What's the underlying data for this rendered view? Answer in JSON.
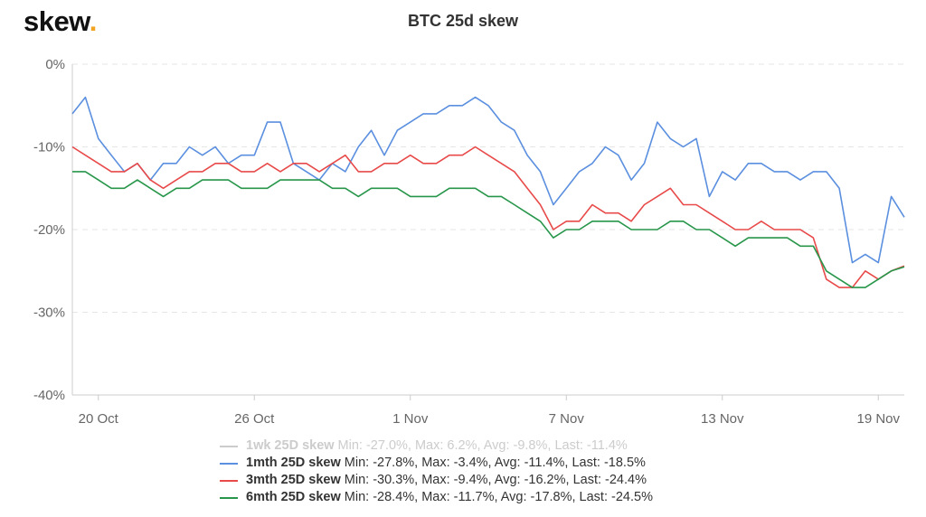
{
  "brand": {
    "name": "skew",
    "dot": "."
  },
  "chart_data": {
    "type": "line",
    "title": "BTC 25d skew",
    "xlabel": "",
    "ylabel": "",
    "ylim": [
      -40,
      0
    ],
    "y_ticks": [
      "0%",
      "-10%",
      "-20%",
      "-30%",
      "-40%"
    ],
    "y_tick_values": [
      0,
      -10,
      -20,
      -30,
      -40
    ],
    "x_range": [
      "2020-10-19",
      "2020-11-20"
    ],
    "x_ticks": [
      "20 Oct",
      "26 Oct",
      "1 Nov",
      "7 Nov",
      "13 Nov",
      "19 Nov"
    ],
    "x_tick_dates": [
      "2020-10-20",
      "2020-10-26",
      "2020-11-01",
      "2020-11-07",
      "2020-11-13",
      "2020-11-19"
    ],
    "grid": "horizontal-dashed",
    "legend_position": "bottom",
    "series": [
      {
        "name": "1wk 25D skew",
        "stats": "Min: -27.0%, Max: 6.2%, Avg: -9.8%, Last: -11.4%",
        "color": "#cccccc",
        "visible": false,
        "x": [],
        "values": []
      },
      {
        "name": "1mth 25D skew",
        "stats": "Min: -27.8%, Max: -3.4%, Avg: -11.4%, Last: -18.5%",
        "color": "#5b8fdf",
        "visible": true,
        "x": [
          "2020-10-19",
          "2020-10-19T12:00",
          "2020-10-20",
          "2020-10-20T12:00",
          "2020-10-21",
          "2020-10-21T12:00",
          "2020-10-22",
          "2020-10-22T12:00",
          "2020-10-23",
          "2020-10-23T12:00",
          "2020-10-24",
          "2020-10-24T12:00",
          "2020-10-25",
          "2020-10-25T12:00",
          "2020-10-26",
          "2020-10-26T12:00",
          "2020-10-27",
          "2020-10-27T12:00",
          "2020-10-28",
          "2020-10-28T12:00",
          "2020-10-29",
          "2020-10-29T12:00",
          "2020-10-30",
          "2020-10-30T12:00",
          "2020-10-31",
          "2020-10-31T12:00",
          "2020-11-01",
          "2020-11-01T12:00",
          "2020-11-02",
          "2020-11-02T12:00",
          "2020-11-03",
          "2020-11-03T12:00",
          "2020-11-04",
          "2020-11-04T12:00",
          "2020-11-05",
          "2020-11-05T12:00",
          "2020-11-06",
          "2020-11-06T12:00",
          "2020-11-07",
          "2020-11-07T12:00",
          "2020-11-08",
          "2020-11-08T12:00",
          "2020-11-09",
          "2020-11-09T12:00",
          "2020-11-10",
          "2020-11-10T12:00",
          "2020-11-11",
          "2020-11-11T12:00",
          "2020-11-12",
          "2020-11-12T12:00",
          "2020-11-13",
          "2020-11-13T12:00",
          "2020-11-14",
          "2020-11-14T12:00",
          "2020-11-15",
          "2020-11-15T12:00",
          "2020-11-16",
          "2020-11-16T12:00",
          "2020-11-17",
          "2020-11-17T12:00",
          "2020-11-18",
          "2020-11-18T12:00",
          "2020-11-19",
          "2020-11-19T12:00",
          "2020-11-20"
        ],
        "values": [
          -6,
          -4,
          -9,
          -11,
          -13,
          -12,
          -14,
          -12,
          -12,
          -10,
          -11,
          -10,
          -12,
          -11,
          -11,
          -7,
          -7,
          -12,
          -13,
          -14,
          -12,
          -13,
          -10,
          -8,
          -11,
          -8,
          -7,
          -6,
          -6,
          -5,
          -5,
          -4,
          -5,
          -7,
          -8,
          -11,
          -13,
          -17,
          -15,
          -13,
          -12,
          -10,
          -11,
          -14,
          -12,
          -7,
          -9,
          -10,
          -9,
          -16,
          -13,
          -14,
          -12,
          -12,
          -13,
          -13,
          -14,
          -13,
          -13,
          -15,
          -24,
          -23,
          -24,
          -16,
          -18.5
        ]
      },
      {
        "name": "3mth 25D skew",
        "stats": "Min: -30.3%, Max: -9.4%, Avg: -16.2%, Last: -24.4%",
        "color": "#e84a4a",
        "visible": true,
        "x": [
          "2020-10-19",
          "2020-10-19T12:00",
          "2020-10-20",
          "2020-10-20T12:00",
          "2020-10-21",
          "2020-10-21T12:00",
          "2020-10-22",
          "2020-10-22T12:00",
          "2020-10-23",
          "2020-10-23T12:00",
          "2020-10-24",
          "2020-10-24T12:00",
          "2020-10-25",
          "2020-10-25T12:00",
          "2020-10-26",
          "2020-10-26T12:00",
          "2020-10-27",
          "2020-10-27T12:00",
          "2020-10-28",
          "2020-10-28T12:00",
          "2020-10-29",
          "2020-10-29T12:00",
          "2020-10-30",
          "2020-10-30T12:00",
          "2020-10-31",
          "2020-10-31T12:00",
          "2020-11-01",
          "2020-11-01T12:00",
          "2020-11-02",
          "2020-11-02T12:00",
          "2020-11-03",
          "2020-11-03T12:00",
          "2020-11-04",
          "2020-11-04T12:00",
          "2020-11-05",
          "2020-11-05T12:00",
          "2020-11-06",
          "2020-11-06T12:00",
          "2020-11-07",
          "2020-11-07T12:00",
          "2020-11-08",
          "2020-11-08T12:00",
          "2020-11-09",
          "2020-11-09T12:00",
          "2020-11-10",
          "2020-11-10T12:00",
          "2020-11-11",
          "2020-11-11T12:00",
          "2020-11-12",
          "2020-11-12T12:00",
          "2020-11-13",
          "2020-11-13T12:00",
          "2020-11-14",
          "2020-11-14T12:00",
          "2020-11-15",
          "2020-11-15T12:00",
          "2020-11-16",
          "2020-11-16T12:00",
          "2020-11-17",
          "2020-11-17T12:00",
          "2020-11-18",
          "2020-11-18T12:00",
          "2020-11-19",
          "2020-11-19T12:00",
          "2020-11-20"
        ],
        "values": [
          -10,
          -11,
          -12,
          -13,
          -13,
          -12,
          -14,
          -15,
          -14,
          -13,
          -13,
          -12,
          -12,
          -13,
          -13,
          -12,
          -13,
          -12,
          -12,
          -13,
          -12,
          -11,
          -13,
          -13,
          -12,
          -12,
          -11,
          -12,
          -12,
          -11,
          -11,
          -10,
          -11,
          -12,
          -13,
          -15,
          -17,
          -20,
          -19,
          -19,
          -17,
          -18,
          -18,
          -19,
          -17,
          -16,
          -15,
          -17,
          -17,
          -18,
          -19,
          -20,
          -20,
          -19,
          -20,
          -20,
          -20,
          -21,
          -26,
          -27,
          -27,
          -25,
          -26,
          -25,
          -24.4
        ]
      },
      {
        "name": "6mth 25D skew",
        "stats": "Min: -28.4%, Max: -11.7%, Avg: -17.8%, Last: -24.5%",
        "color": "#27964a",
        "visible": true,
        "x": [
          "2020-10-19",
          "2020-10-19T12:00",
          "2020-10-20",
          "2020-10-20T12:00",
          "2020-10-21",
          "2020-10-21T12:00",
          "2020-10-22",
          "2020-10-22T12:00",
          "2020-10-23",
          "2020-10-23T12:00",
          "2020-10-24",
          "2020-10-24T12:00",
          "2020-10-25",
          "2020-10-25T12:00",
          "2020-10-26",
          "2020-10-26T12:00",
          "2020-10-27",
          "2020-10-27T12:00",
          "2020-10-28",
          "2020-10-28T12:00",
          "2020-10-29",
          "2020-10-29T12:00",
          "2020-10-30",
          "2020-10-30T12:00",
          "2020-10-31",
          "2020-10-31T12:00",
          "2020-11-01",
          "2020-11-01T12:00",
          "2020-11-02",
          "2020-11-02T12:00",
          "2020-11-03",
          "2020-11-03T12:00",
          "2020-11-04",
          "2020-11-04T12:00",
          "2020-11-05",
          "2020-11-05T12:00",
          "2020-11-06",
          "2020-11-06T12:00",
          "2020-11-07",
          "2020-11-07T12:00",
          "2020-11-08",
          "2020-11-08T12:00",
          "2020-11-09",
          "2020-11-09T12:00",
          "2020-11-10",
          "2020-11-10T12:00",
          "2020-11-11",
          "2020-11-11T12:00",
          "2020-11-12",
          "2020-11-12T12:00",
          "2020-11-13",
          "2020-11-13T12:00",
          "2020-11-14",
          "2020-11-14T12:00",
          "2020-11-15",
          "2020-11-15T12:00",
          "2020-11-16",
          "2020-11-16T12:00",
          "2020-11-17",
          "2020-11-17T12:00",
          "2020-11-18",
          "2020-11-18T12:00",
          "2020-11-19",
          "2020-11-19T12:00",
          "2020-11-20"
        ],
        "values": [
          -13,
          -13,
          -14,
          -15,
          -15,
          -14,
          -15,
          -16,
          -15,
          -15,
          -14,
          -14,
          -14,
          -15,
          -15,
          -15,
          -14,
          -14,
          -14,
          -14,
          -15,
          -15,
          -16,
          -15,
          -15,
          -15,
          -16,
          -16,
          -16,
          -15,
          -15,
          -15,
          -16,
          -16,
          -17,
          -18,
          -19,
          -21,
          -20,
          -20,
          -19,
          -19,
          -19,
          -20,
          -20,
          -20,
          -19,
          -19,
          -20,
          -20,
          -21,
          -22,
          -21,
          -21,
          -21,
          -21,
          -22,
          -22,
          -25,
          -26,
          -27,
          -27,
          -26,
          -25,
          -24.5
        ]
      }
    ]
  }
}
